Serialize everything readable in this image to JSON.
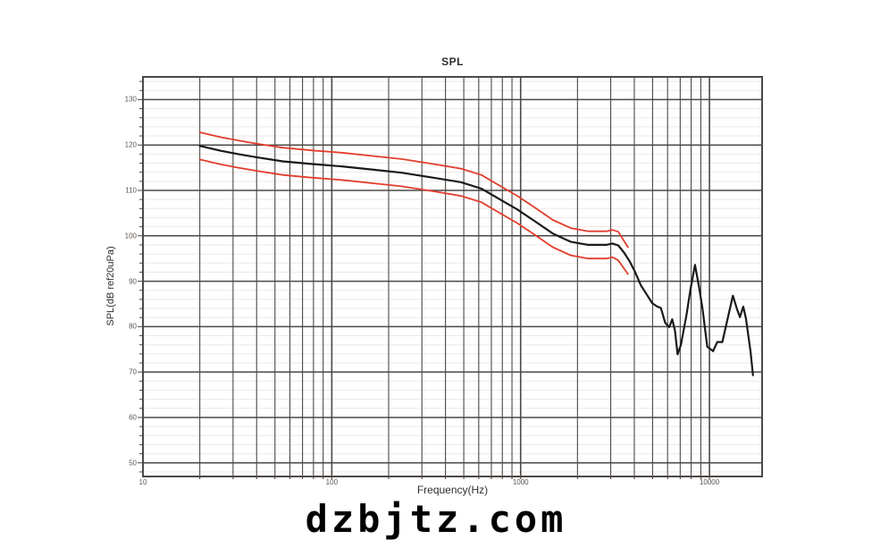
{
  "watermark": "dzbjtz.com",
  "chart_data": {
    "type": "line",
    "title": "SPL",
    "xlabel": "Frequency(Hz)",
    "ylabel": "SPL(dB ref20uPa)",
    "x_scale": "log",
    "xlim": [
      10,
      19000
    ],
    "ylim": [
      47,
      135
    ],
    "x_ticks": [
      10,
      100,
      1000,
      10000
    ],
    "x_tick_labels": [
      "10",
      "100",
      "1000",
      "10000"
    ],
    "y_ticks": [
      130,
      120,
      110,
      100,
      90,
      80,
      70,
      60,
      50
    ],
    "y_minor_step_db": 2,
    "grid": "on",
    "legend": "none",
    "colors": {
      "grid_major": "#4c4845",
      "grid_minor": "#efe7e5",
      "measured": "#1a1a1a",
      "tolerance": "#e23d2c",
      "tick_text": "#5d5650",
      "title_text": "#2e2e2e"
    },
    "series": [
      {
        "name": "upper-tolerance",
        "color": "#e23d2c",
        "width": 1.8,
        "points": [
          [
            20,
            122.8
          ],
          [
            26,
            121.7
          ],
          [
            32,
            121.0
          ],
          [
            40,
            120.3
          ],
          [
            55,
            119.4
          ],
          [
            79,
            118.8
          ],
          [
            113,
            118.3
          ],
          [
            163,
            117.6
          ],
          [
            234,
            116.9
          ],
          [
            334,
            115.9
          ],
          [
            483,
            114.8
          ],
          [
            620,
            113.4
          ],
          [
            770,
            111.1
          ],
          [
            960,
            108.8
          ],
          [
            1190,
            106.2
          ],
          [
            1480,
            103.5
          ],
          [
            1840,
            101.7
          ],
          [
            2280,
            101.0
          ],
          [
            2840,
            101.0
          ],
          [
            3060,
            101.3
          ],
          [
            3290,
            100.9
          ],
          [
            3700,
            97.5
          ]
        ]
      },
      {
        "name": "lower-tolerance",
        "color": "#e23d2c",
        "width": 1.8,
        "points": [
          [
            20,
            116.8
          ],
          [
            26,
            115.7
          ],
          [
            32,
            115.0
          ],
          [
            40,
            114.3
          ],
          [
            55,
            113.4
          ],
          [
            79,
            112.8
          ],
          [
            113,
            112.3
          ],
          [
            163,
            111.6
          ],
          [
            234,
            110.9
          ],
          [
            334,
            109.9
          ],
          [
            483,
            108.8
          ],
          [
            620,
            107.4
          ],
          [
            770,
            105.1
          ],
          [
            960,
            102.8
          ],
          [
            1190,
            100.2
          ],
          [
            1480,
            97.5
          ],
          [
            1840,
            95.7
          ],
          [
            2280,
            95.0
          ],
          [
            2840,
            95.0
          ],
          [
            3060,
            95.3
          ],
          [
            3290,
            94.6
          ],
          [
            3700,
            91.6
          ]
        ]
      },
      {
        "name": "measured-spl",
        "color": "#1a1a1a",
        "width": 2.2,
        "points": [
          [
            20,
            119.8
          ],
          [
            26,
            118.7
          ],
          [
            32,
            118.0
          ],
          [
            40,
            117.3
          ],
          [
            55,
            116.4
          ],
          [
            79,
            115.8
          ],
          [
            113,
            115.3
          ],
          [
            163,
            114.6
          ],
          [
            234,
            113.9
          ],
          [
            334,
            112.9
          ],
          [
            483,
            111.8
          ],
          [
            620,
            110.4
          ],
          [
            770,
            108.1
          ],
          [
            960,
            105.8
          ],
          [
            1190,
            103.2
          ],
          [
            1480,
            100.5
          ],
          [
            1840,
            98.7
          ],
          [
            2280,
            98.0
          ],
          [
            2840,
            98.0
          ],
          [
            3060,
            98.3
          ],
          [
            3290,
            97.9
          ],
          [
            3530,
            96.3
          ],
          [
            3790,
            94.3
          ],
          [
            4040,
            92.0
          ],
          [
            4330,
            89.1
          ],
          [
            4650,
            87.1
          ],
          [
            4970,
            85.2
          ],
          [
            5250,
            84.5
          ],
          [
            5530,
            84.1
          ],
          [
            5830,
            80.8
          ],
          [
            6120,
            79.9
          ],
          [
            6350,
            81.6
          ],
          [
            6560,
            79.2
          ],
          [
            6780,
            73.9
          ],
          [
            7050,
            75.9
          ],
          [
            7550,
            82.5
          ],
          [
            7950,
            88.4
          ],
          [
            8380,
            93.6
          ],
          [
            8830,
            88.4
          ],
          [
            9200,
            83.8
          ],
          [
            9730,
            75.6
          ],
          [
            10450,
            74.6
          ],
          [
            11000,
            76.6
          ],
          [
            11700,
            76.6
          ],
          [
            12300,
            80.6
          ],
          [
            13300,
            86.8
          ],
          [
            14000,
            83.8
          ],
          [
            14500,
            82.1
          ],
          [
            15100,
            84.4
          ],
          [
            15600,
            81.8
          ],
          [
            16500,
            74.6
          ],
          [
            17000,
            69.3
          ]
        ]
      }
    ]
  }
}
